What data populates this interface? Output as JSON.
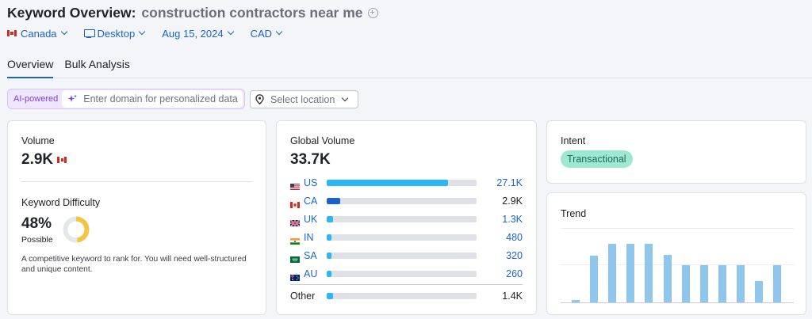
{
  "header": {
    "title": "Keyword Overview:",
    "keyword": "construction contractors near me"
  },
  "filters": {
    "country": "Canada",
    "device": "Desktop",
    "date": "Aug 15, 2024",
    "currency": "CAD"
  },
  "tabs": [
    {
      "label": "Overview",
      "active": true
    },
    {
      "label": "Bulk Analysis",
      "active": false
    }
  ],
  "ai": {
    "badge": "AI-powered",
    "placeholder": "Enter domain for personalized data"
  },
  "location": {
    "placeholder": "Select location"
  },
  "volume": {
    "label": "Volume",
    "value": "2.9K"
  },
  "difficulty": {
    "label": "Keyword Difficulty",
    "value": "48%",
    "level": "Possible",
    "percent": 48,
    "ring_color": "#f4c542",
    "description": "A competitive keyword to rank for. You will need well-structured and unique content."
  },
  "global_volume": {
    "label": "Global Volume",
    "value": "33.7K",
    "rows": [
      {
        "code": "US",
        "value": "27.1K",
        "fill": 0.81,
        "color": "#2bb7f6"
      },
      {
        "code": "CA",
        "value": "2.9K",
        "fill": 0.09,
        "color": "#1a64c9"
      },
      {
        "code": "UK",
        "value": "1.3K",
        "fill": 0.04,
        "color": "#2bb7f6"
      },
      {
        "code": "IN",
        "value": "480",
        "fill": 0.015,
        "color": "#2bb7f6"
      },
      {
        "code": "SA",
        "value": "320",
        "fill": 0.01,
        "color": "#2bb7f6"
      },
      {
        "code": "AU",
        "value": "260",
        "fill": 0.01,
        "color": "#2bb7f6"
      }
    ],
    "other": {
      "label": "Other",
      "value": "1.4K",
      "fill": 0.04
    }
  },
  "intent": {
    "label": "Intent",
    "badge": "Transactional"
  },
  "trend": {
    "label": "Trend",
    "chart_data": {
      "type": "bar",
      "values": [
        0.03,
        0.62,
        0.78,
        0.78,
        0.78,
        0.63,
        0.5,
        0.5,
        0.5,
        0.5,
        0.28,
        0.5
      ],
      "ylim": [
        0,
        1
      ],
      "grid": true
    }
  }
}
